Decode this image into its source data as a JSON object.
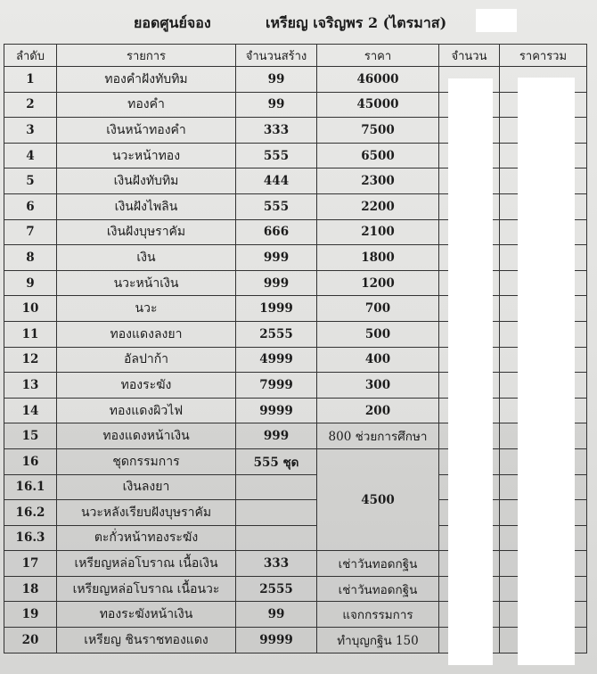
{
  "title": {
    "left": "ยอดศูนย์จอง",
    "right": "เหรียญ เจริญพร 2 (ไตรมาส)"
  },
  "columns": [
    "ลำดับ",
    "รายการ",
    "จำนวนสร้าง",
    "ราคา",
    "จำนวน",
    "ราคารวม"
  ],
  "rows": [
    {
      "no": "1",
      "item": "ทองคำฝังทับทิม",
      "qty": "99",
      "price": "46000"
    },
    {
      "no": "2",
      "item": "ทองคำ",
      "qty": "99",
      "price": "45000"
    },
    {
      "no": "3",
      "item": "เงินหน้าทองคำ",
      "qty": "333",
      "price": "7500"
    },
    {
      "no": "4",
      "item": "นวะหน้าทอง",
      "qty": "555",
      "price": "6500"
    },
    {
      "no": "5",
      "item": "เงินฝังทับทิม",
      "qty": "444",
      "price": "2300"
    },
    {
      "no": "6",
      "item": "เงินฝังไพลิน",
      "qty": "555",
      "price": "2200"
    },
    {
      "no": "7",
      "item": "เงินฝังบุษราคัม",
      "qty": "666",
      "price": "2100"
    },
    {
      "no": "8",
      "item": "เงิน",
      "qty": "999",
      "price": "1800"
    },
    {
      "no": "9",
      "item": "นวะหน้าเงิน",
      "qty": "999",
      "price": "1200"
    },
    {
      "no": "10",
      "item": "นวะ",
      "qty": "1999",
      "price": "700"
    },
    {
      "no": "11",
      "item": "ทองแดงลงยา",
      "qty": "2555",
      "price": "500"
    },
    {
      "no": "12",
      "item": "อัลปาก้า",
      "qty": "4999",
      "price": "400"
    },
    {
      "no": "13",
      "item": "ทองระฆัง",
      "qty": "7999",
      "price": "300"
    },
    {
      "no": "14",
      "item": "ทองแดงผิวไฟ",
      "qty": "9999",
      "price": "200"
    },
    {
      "no": "15",
      "item": "ทองแดงหน้าเงิน",
      "qty": "999",
      "price": "800 ช่วยการศึกษา"
    },
    {
      "no": "16",
      "item": "ชุดกรรมการ",
      "qty": "555 ชุด",
      "price": "4500",
      "price_rowspan": 4
    },
    {
      "no": "16.1",
      "item": "เงินลงยา",
      "qty": ""
    },
    {
      "no": "16.2",
      "item": "นวะหลังเรียบฝังบุษราคัม",
      "qty": ""
    },
    {
      "no": "16.3",
      "item": "ตะกั่วหน้าทองระฆัง",
      "qty": ""
    },
    {
      "no": "17",
      "item": "เหรียญหล่อโบราณ เนื้อเงิน",
      "qty": "333",
      "price": "เช่าวันทอดกฐิน"
    },
    {
      "no": "18",
      "item": "เหรียญหล่อโบราณ เนื้อนวะ",
      "qty": "2555",
      "price": "เช่าวันทอดกฐิน"
    },
    {
      "no": "19",
      "item": "ทองระฆังหน้าเงิน",
      "qty": "99",
      "price": "แจกกรรมการ"
    },
    {
      "no": "20",
      "item": "เหรียญ ชินราชทองแดง",
      "qty": "9999",
      "price": "ทำบุญกฐิน 150"
    }
  ]
}
